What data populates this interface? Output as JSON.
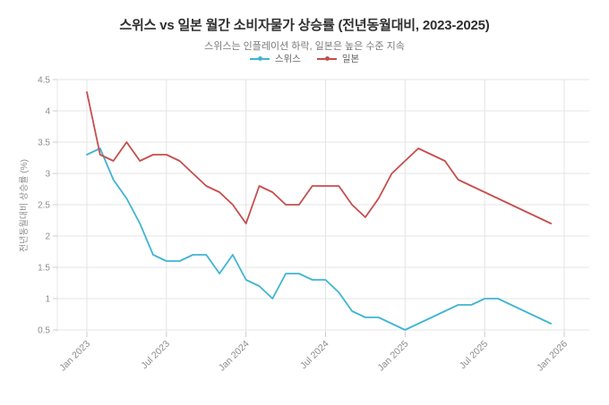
{
  "chart_data": {
    "type": "line",
    "title": "스위스 vs 일본 월간 소비자물가 상승률 (전년동월대비, 2023-2025)",
    "subtitle": "스위스는 인플레이션 하락, 일본은 높은 수준 지속",
    "ylabel": "전년동월대비 상승률 (%)",
    "x_tick_labels": [
      "Jan 2023",
      "Jul 2023",
      "Jan 2024",
      "Jul 2024",
      "Jan 2025",
      "Jul 2025",
      "Jan 2026"
    ],
    "y_tick_labels": [
      "0.5",
      "1",
      "1.5",
      "2",
      "2.5",
      "3",
      "3.5",
      "4",
      "4.5"
    ],
    "y_ticks": [
      0.5,
      1,
      1.5,
      2,
      2.5,
      3,
      3.5,
      4,
      4.5
    ],
    "ylim": [
      0.5,
      4.5
    ],
    "grid": true,
    "legend_position": "top-center",
    "x_months": [
      "2023-01",
      "2023-02",
      "2023-03",
      "2023-04",
      "2023-05",
      "2023-06",
      "2023-07",
      "2023-08",
      "2023-09",
      "2023-10",
      "2023-11",
      "2023-12",
      "2024-01",
      "2024-02",
      "2024-03",
      "2024-04",
      "2024-05",
      "2024-06",
      "2024-07",
      "2024-08",
      "2024-09",
      "2024-10",
      "2024-11",
      "2024-12",
      "2025-01",
      "2025-02",
      "2025-03",
      "2025-04",
      "2025-05",
      "2025-06",
      "2025-07",
      "2025-08",
      "2025-09",
      "2025-10",
      "2025-11",
      "2025-12"
    ],
    "series": [
      {
        "name": "스위스",
        "color": "#3eb5d3",
        "values": [
          3.3,
          3.4,
          2.9,
          2.6,
          2.2,
          1.7,
          1.6,
          1.6,
          1.7,
          1.7,
          1.4,
          1.7,
          1.3,
          1.2,
          1.0,
          1.4,
          1.4,
          1.3,
          1.3,
          1.1,
          0.8,
          0.7,
          0.7,
          0.6,
          0.5,
          0.6,
          0.7,
          0.8,
          0.9,
          0.9,
          1.0,
          1.0,
          0.9,
          0.8,
          0.7,
          0.6
        ]
      },
      {
        "name": "일본",
        "color": "#c64d4d",
        "values": [
          4.3,
          3.3,
          3.2,
          3.5,
          3.2,
          3.3,
          3.3,
          3.2,
          3.0,
          2.8,
          2.7,
          2.5,
          2.2,
          2.8,
          2.7,
          2.5,
          2.5,
          2.8,
          2.8,
          2.8,
          2.5,
          2.3,
          2.6,
          3.0,
          3.2,
          3.4,
          3.3,
          3.2,
          2.9,
          2.8,
          2.7,
          2.6,
          2.5,
          2.4,
          2.3,
          2.2
        ]
      }
    ],
    "colors": {
      "grid": "#e4e4e4",
      "tick_label": "#8c8c8c",
      "title": "#2f2f2f",
      "subtitle": "#7a7a7a"
    }
  }
}
